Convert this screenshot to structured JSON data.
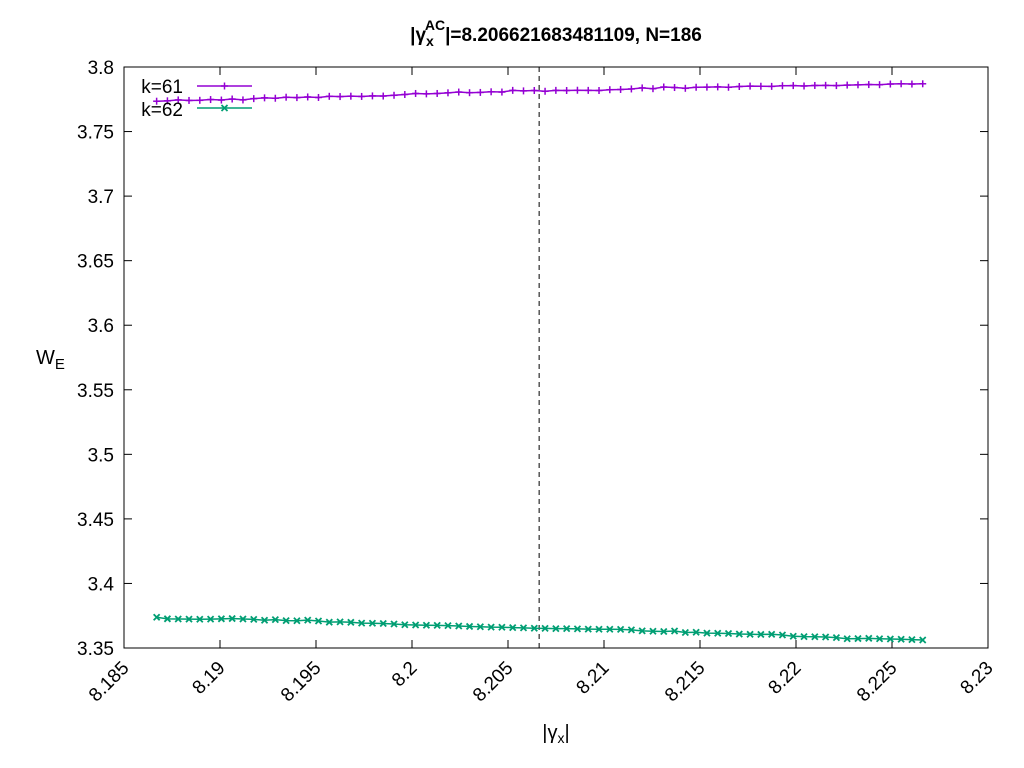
{
  "chart_data": {
    "type": "line",
    "title": {
      "prefix": "|γ",
      "sub": "x",
      "sup": "AC",
      "suffix": "|=8.206621683481109, N=186"
    },
    "xlabel": {
      "prefix": "|γ",
      "sub": "x",
      "suffix": "|"
    },
    "ylabel": {
      "main": "W",
      "sub": "E"
    },
    "xlim": [
      8.185,
      8.23
    ],
    "ylim": [
      3.35,
      3.8
    ],
    "xticks": [
      8.185,
      8.19,
      8.195,
      8.2,
      8.205,
      8.21,
      8.215,
      8.22,
      8.225,
      8.23
    ],
    "xtick_labels": [
      "8.185",
      "8.19",
      "8.195",
      "8.2",
      "8.205",
      "8.21",
      "8.215",
      "8.22",
      "8.225",
      "8.23"
    ],
    "yticks": [
      3.35,
      3.4,
      3.45,
      3.5,
      3.55,
      3.6,
      3.65,
      3.7,
      3.75,
      3.8
    ],
    "ytick_labels": [
      "3.35",
      "3.4",
      "3.45",
      "3.5",
      "3.55",
      "3.6",
      "3.65",
      "3.7",
      "3.75",
      "3.8"
    ],
    "grid": false,
    "legend_position": "top-left",
    "vline": {
      "x": 8.206621683481108,
      "style": "dashed"
    },
    "x_start": 8.1867,
    "x_end": 8.2266,
    "series": [
      {
        "name": "k=61",
        "color": "#9400d3",
        "marker": "plus",
        "values": [
          3.7735,
          3.7738,
          3.7745,
          3.7741,
          3.7742,
          3.7748,
          3.7744,
          3.7752,
          3.7745,
          3.7755,
          3.7761,
          3.7758,
          3.7766,
          3.7763,
          3.7768,
          3.7764,
          3.7773,
          3.7771,
          3.7774,
          3.7772,
          3.7776,
          3.7775,
          3.7781,
          3.7787,
          3.7795,
          3.7792,
          3.7795,
          3.78,
          3.7806,
          3.7801,
          3.7803,
          3.7808,
          3.7806,
          3.7819,
          3.7815,
          3.7818,
          3.7812,
          3.7819,
          3.7818,
          3.782,
          3.7819,
          3.7818,
          3.7824,
          3.7826,
          3.783,
          3.7838,
          3.7832,
          3.7845,
          3.7841,
          3.7835,
          3.7843,
          3.7844,
          3.7846,
          3.7843,
          3.7849,
          3.7852,
          3.7851,
          3.785,
          3.7855,
          3.7856,
          3.7853,
          3.7857,
          3.7858,
          3.7856,
          3.786,
          3.7862,
          3.7864,
          3.7863,
          3.7868,
          3.787,
          3.7868,
          3.787
        ]
      },
      {
        "name": "k=62",
        "color": "#009e73",
        "marker": "cross",
        "values": [
          3.3738,
          3.3726,
          3.3725,
          3.3724,
          3.3723,
          3.3724,
          3.3726,
          3.3728,
          3.3725,
          3.3722,
          3.3715,
          3.372,
          3.3712,
          3.3711,
          3.3716,
          3.3709,
          3.37,
          3.3702,
          3.3699,
          3.3693,
          3.3692,
          3.369,
          3.3686,
          3.368,
          3.3678,
          3.3676,
          3.3675,
          3.3673,
          3.367,
          3.3667,
          3.3665,
          3.3662,
          3.3661,
          3.3658,
          3.3656,
          3.3653,
          3.3652,
          3.365,
          3.365,
          3.3648,
          3.3646,
          3.3645,
          3.3645,
          3.3644,
          3.364,
          3.3633,
          3.363,
          3.3628,
          3.3632,
          3.362,
          3.3622,
          3.3615,
          3.3614,
          3.3612,
          3.3608,
          3.3606,
          3.3605,
          3.3606,
          3.3601,
          3.3591,
          3.3588,
          3.3587,
          3.3585,
          3.358,
          3.3572,
          3.3573,
          3.3575,
          3.3572,
          3.357,
          3.3568,
          3.3565,
          3.3562
        ]
      }
    ]
  }
}
